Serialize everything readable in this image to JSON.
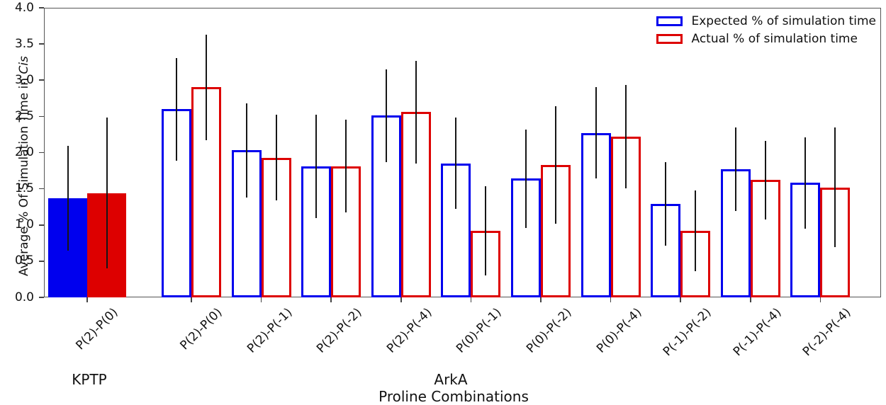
{
  "chart_data": {
    "type": "bar",
    "title": "",
    "ylabel_regular": "Average % Of Simulation Time in ",
    "ylabel_italic": "Cis",
    "xlabel": "Proline Combinations",
    "ylim": [
      0.0,
      4.0
    ],
    "ytick_labels": [
      "0.0",
      "0.5",
      "1.0",
      "1.5",
      "2.0",
      "2.5",
      "3.0",
      "3.5",
      "4.0"
    ],
    "grid": false,
    "legend_position": "top-right",
    "error_bar_color": "#161616",
    "categories": [
      "P(2)-P(0)",
      "P(2)-P(0)",
      "P(2)-P(-1)",
      "P(2)-P(-2)",
      "P(2)-P(-4)",
      "P(0)-P(-1)",
      "P(0)-P(-2)",
      "P(0)-P(-4)",
      "P(-1)-P(-2)",
      "P(-1)-P(-4)",
      "P(-2)-P(-4)"
    ],
    "groups": [
      {
        "label": "KPTP",
        "category_count": 1,
        "bar_style": "filled"
      },
      {
        "label": "ArkA",
        "category_count": 10,
        "bar_style": "outlined"
      }
    ],
    "series": [
      {
        "label": "Expected % of simulation time",
        "color": "#0000ee",
        "values": [
          1.37,
          2.6,
          2.03,
          1.81,
          2.51,
          1.85,
          1.64,
          2.27,
          1.29,
          1.77,
          1.58
        ],
        "errors": [
          0.72,
          0.71,
          0.65,
          0.71,
          0.64,
          0.63,
          0.68,
          0.63,
          0.58,
          0.58,
          0.63
        ]
      },
      {
        "label": "Actual % of simulation time",
        "color": "#dd0000",
        "values": [
          1.44,
          2.9,
          1.93,
          1.81,
          2.56,
          0.92,
          1.83,
          2.22,
          0.92,
          1.62,
          1.52
        ],
        "errors": [
          1.04,
          0.73,
          0.59,
          0.64,
          0.71,
          0.62,
          0.81,
          0.71,
          0.56,
          0.54,
          0.83
        ]
      }
    ]
  }
}
